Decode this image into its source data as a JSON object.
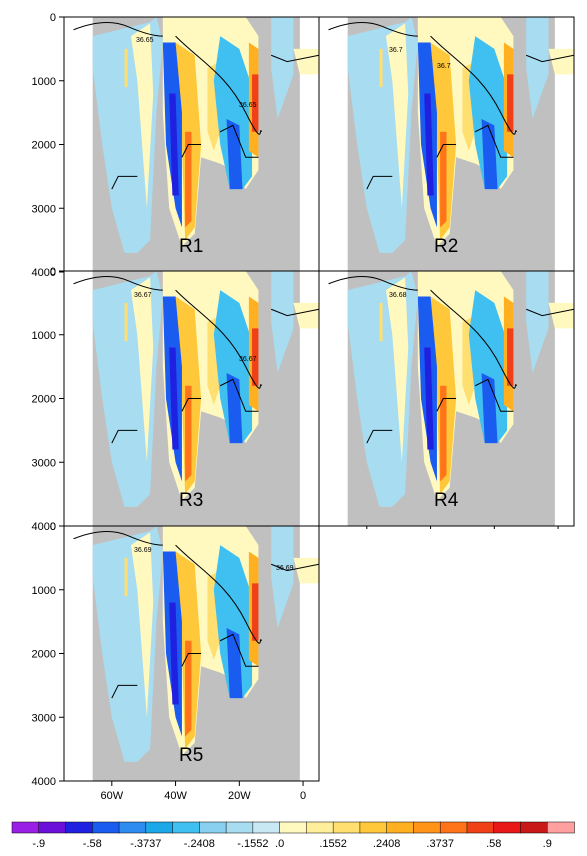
{
  "chart_data": [
    {
      "type": "heatmap",
      "panel": "R1",
      "x_ticks": [
        "60W",
        "40W",
        "20W",
        "0"
      ],
      "y_ticks": [
        "0",
        "1000",
        "2000",
        "3000",
        "4000"
      ],
      "xlim": [
        -75,
        5
      ],
      "ylim": [
        4000,
        0
      ],
      "contour_labels": [
        "36.65",
        "36.65"
      ]
    },
    {
      "type": "heatmap",
      "panel": "R2",
      "x_ticks": [
        "60W",
        "40W",
        "20W",
        "0"
      ],
      "y_ticks": [
        "0",
        "1000",
        "2000",
        "3000",
        "4000"
      ],
      "xlim": [
        -75,
        5
      ],
      "ylim": [
        4000,
        0
      ],
      "contour_labels": [
        "36.7",
        "36.7"
      ]
    },
    {
      "type": "heatmap",
      "panel": "R3",
      "x_ticks": [
        "60W",
        "40W",
        "20W",
        "0"
      ],
      "y_ticks": [
        "0",
        "1000",
        "2000",
        "3000",
        "4000"
      ],
      "xlim": [
        -75,
        5
      ],
      "ylim": [
        4000,
        0
      ],
      "contour_labels": [
        "36.67",
        "36.67"
      ]
    },
    {
      "type": "heatmap",
      "panel": "R4",
      "x_ticks": [
        "60W",
        "40W",
        "20W",
        "0"
      ],
      "y_ticks": [
        "0",
        "1000",
        "2000",
        "3000",
        "4000"
      ],
      "xlim": [
        -75,
        5
      ],
      "ylim": [
        4000,
        0
      ],
      "contour_labels": [
        "36.68"
      ]
    },
    {
      "type": "heatmap",
      "panel": "R5",
      "x_ticks": [
        "60W",
        "40W",
        "20W",
        "0"
      ],
      "y_ticks": [
        "0",
        "1000",
        "2000",
        "3000",
        "4000"
      ],
      "xlim": [
        -75,
        5
      ],
      "ylim": [
        4000,
        0
      ],
      "contour_labels": [
        "36.69",
        "36.69"
      ]
    }
  ],
  "colorbar": {
    "labels": [
      "-.9",
      "-.58",
      "-.3737",
      "-.2408",
      "-.1552",
      ".0",
      ".1552",
      ".2408",
      ".3737",
      ".58",
      ".9"
    ],
    "colors": [
      "#9a1fe6",
      "#6a10d8",
      "#2020e0",
      "#1a5cf0",
      "#2e8cf0",
      "#1aa8e8",
      "#40c0f0",
      "#88cff0",
      "#a8dcf0",
      "#c8e8f4",
      "#fff9c0",
      "#ffef9a",
      "#ffdf70",
      "#ffc83a",
      "#ffb020",
      "#ff9418",
      "#ff7418",
      "#f04018",
      "#e81818",
      "#c81818",
      "#ff9f9f"
    ]
  },
  "colors": {
    "land": "#c0c0c0",
    "contour": "#000000"
  }
}
